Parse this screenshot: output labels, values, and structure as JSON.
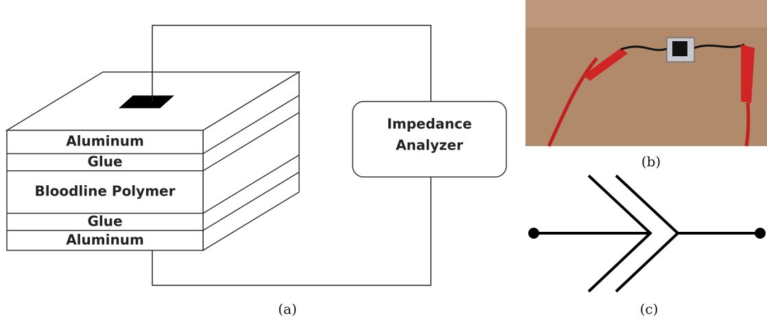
{
  "diagram": {
    "layers": [
      "Aluminum",
      "Glue",
      "Bloodline Polymer",
      "Glue",
      "Aluminum"
    ],
    "analyzer": "Impedance Analyzer",
    "captions": [
      "(a)",
      "(b)",
      "(c)"
    ]
  }
}
